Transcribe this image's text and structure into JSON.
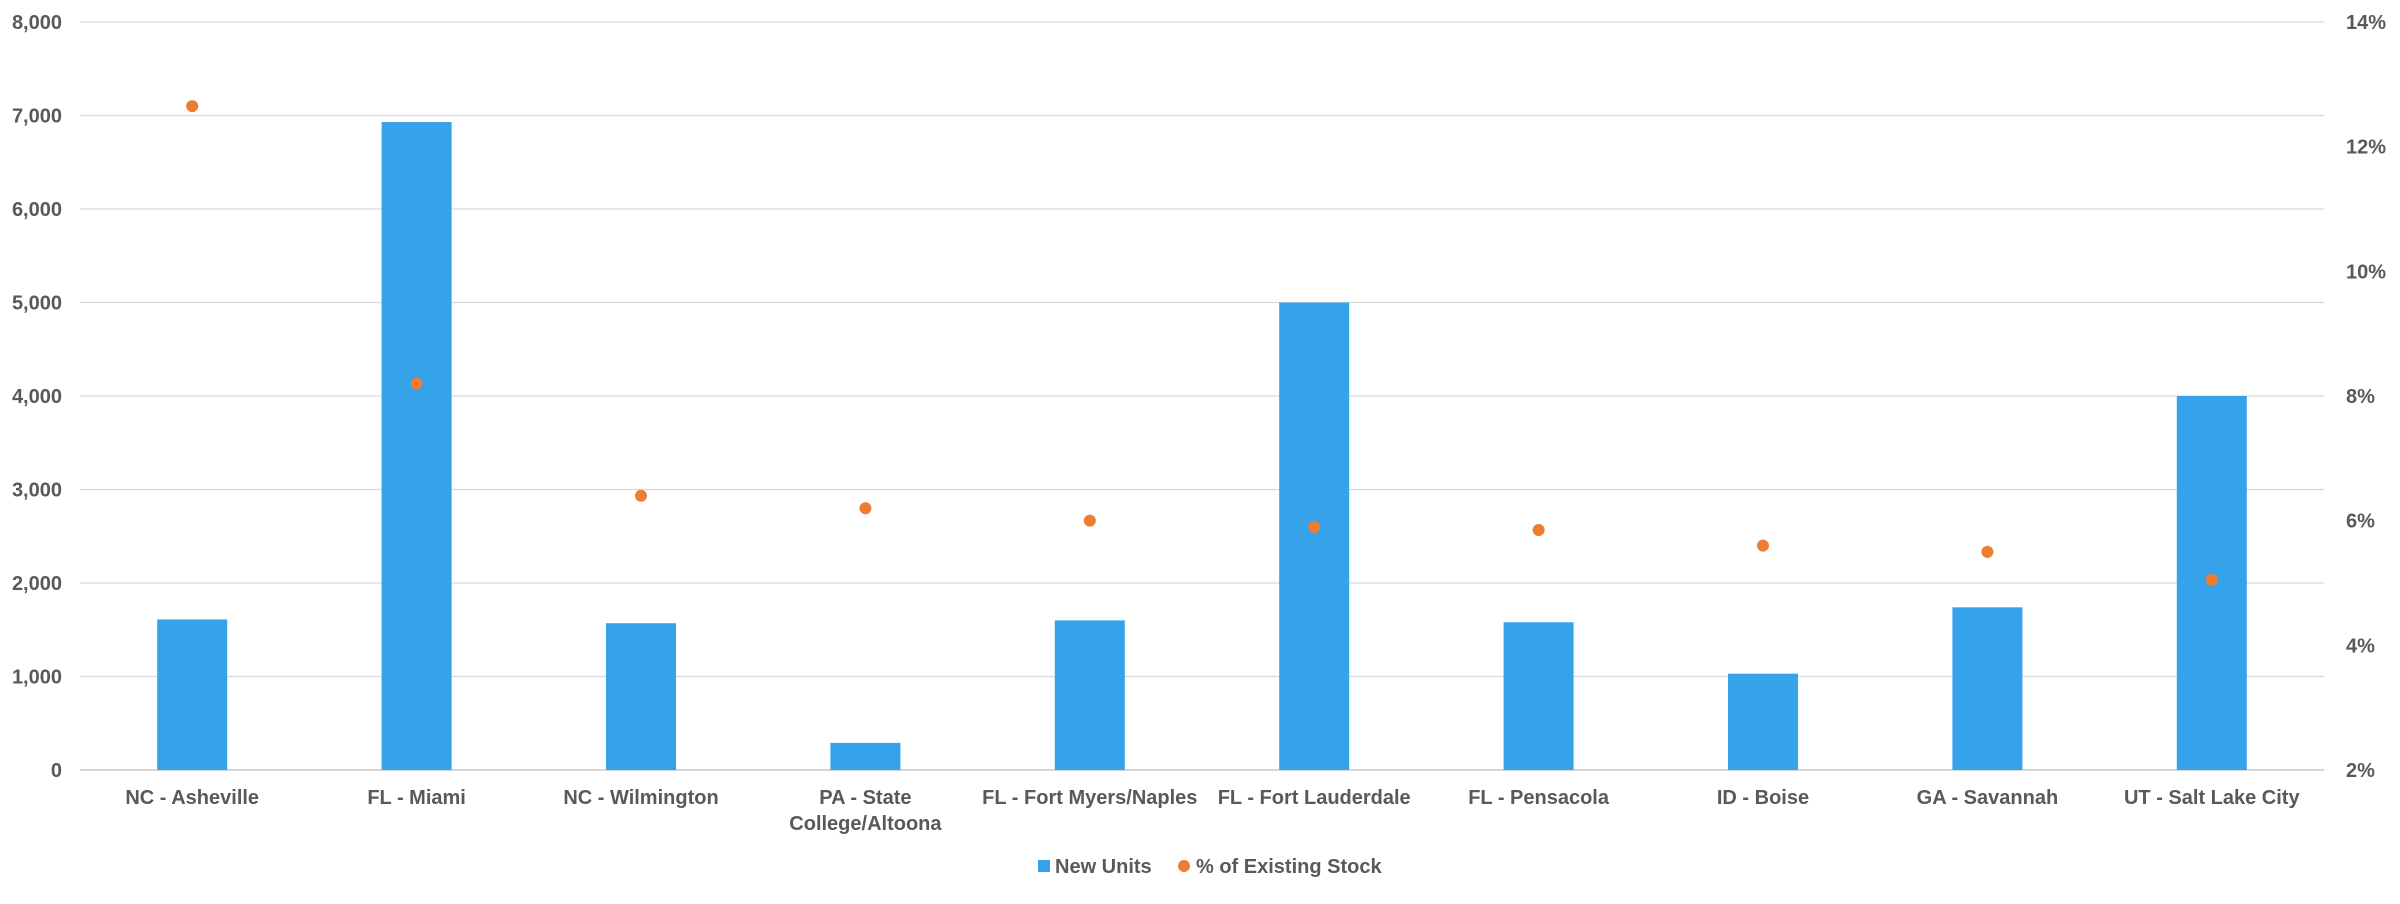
{
  "chart_data": {
    "type": "bar",
    "categories": [
      "NC - Asheville",
      "FL - Miami",
      "NC - Wilmington",
      "PA - State College/Altoona",
      "FL - Fort Myers/Naples",
      "FL - Fort Lauderdale",
      "FL - Pensacola",
      "ID - Boise",
      "GA - Savannah",
      "UT - Salt Lake City"
    ],
    "category_lines": [
      [
        "NC - Asheville"
      ],
      [
        "FL - Miami"
      ],
      [
        "NC - Wilmington"
      ],
      [
        "PA - State",
        "College/Altoona"
      ],
      [
        "FL - Fort Myers/Naples"
      ],
      [
        "FL - Fort Lauderdale"
      ],
      [
        "FL - Pensacola"
      ],
      [
        "ID - Boise"
      ],
      [
        "GA - Savannah"
      ],
      [
        "UT - Salt Lake City"
      ]
    ],
    "series": [
      {
        "name": "New Units",
        "type": "bar",
        "axis": "left",
        "color": "#36a2eb",
        "values": [
          1610,
          6930,
          1570,
          290,
          1600,
          5000,
          1580,
          1030,
          1740,
          4000
        ]
      },
      {
        "name": "% of Existing Stock",
        "type": "scatter",
        "axis": "right",
        "color": "#ed7d31",
        "values": [
          12.65,
          8.2,
          6.4,
          6.2,
          6.0,
          5.9,
          5.85,
          5.6,
          5.5,
          5.05
        ]
      }
    ],
    "y_left": {
      "min": 0,
      "max": 8000,
      "step": 1000,
      "ticks": [
        "0",
        "1,000",
        "2,000",
        "3,000",
        "4,000",
        "5,000",
        "6,000",
        "7,000",
        "8,000"
      ]
    },
    "y_right": {
      "min": 2,
      "max": 14,
      "step": 2,
      "ticks": [
        "2%",
        "4%",
        "6%",
        "8%",
        "10%",
        "12%",
        "14%"
      ]
    },
    "grid": true,
    "legend_position": "bottom-center",
    "colors": {
      "axis_text": "#595959",
      "grid": "#d9d9d9",
      "axis_line": "#bfbfbf"
    }
  }
}
